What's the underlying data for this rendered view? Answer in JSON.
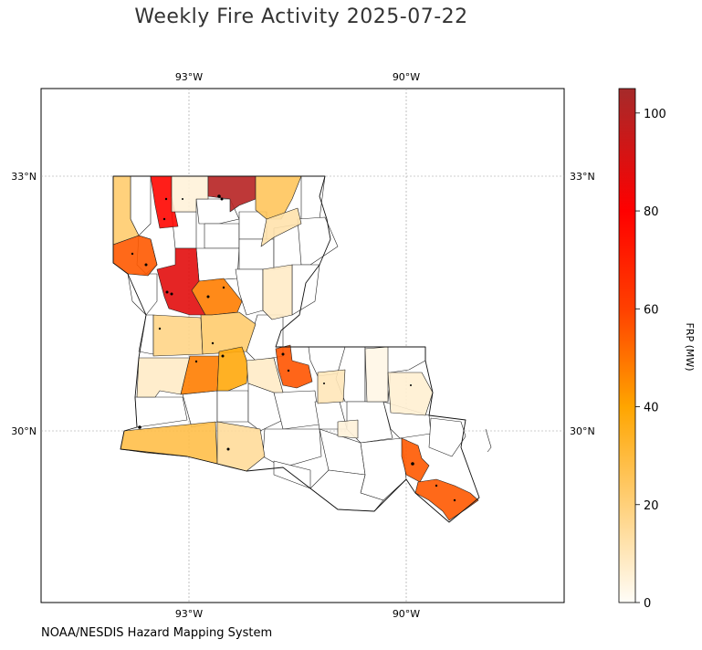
{
  "title": "Weekly Fire Activity 2025-07-22",
  "credit": "NOAA/NESDIS Hazard Mapping System",
  "map": {
    "lon_ticks": [
      "93°W",
      "90°W"
    ],
    "lat_ticks": [
      "33°N",
      "30°N"
    ]
  },
  "colorbar": {
    "label": "FRP (MW)",
    "ticks": [
      "0",
      "20",
      "40",
      "60",
      "80",
      "100"
    ],
    "range": [
      0,
      105
    ],
    "colors": [
      "#fffdf8",
      "#ffd07a",
      "#ffa500",
      "#ff4000",
      "#ff0000",
      "#a52a2a"
    ]
  },
  "chart_data": {
    "type": "choropleth",
    "title": "Weekly Fire Activity 2025-07-22",
    "colorbar_label": "FRP (MW)",
    "value_range": [
      0,
      105
    ],
    "shaded_parishes_approx_frp": [
      {
        "location": "north-central (top border)",
        "value": 100
      },
      {
        "location": "northwest (red strip)",
        "value": 78
      },
      {
        "location": "northwest (dark red block)",
        "value": 88
      },
      {
        "location": "northwest (orange-red)",
        "value": 55
      },
      {
        "location": "north-central (orange)",
        "value": 45
      },
      {
        "location": "central-east (orange-red)",
        "value": 55
      },
      {
        "location": "southeast delta",
        "value": 55
      },
      {
        "location": "west-central (orange)",
        "value": 42
      },
      {
        "location": "southwest coast",
        "value": 28
      },
      {
        "location": "northeast (light orange)",
        "value": 25
      }
    ]
  }
}
